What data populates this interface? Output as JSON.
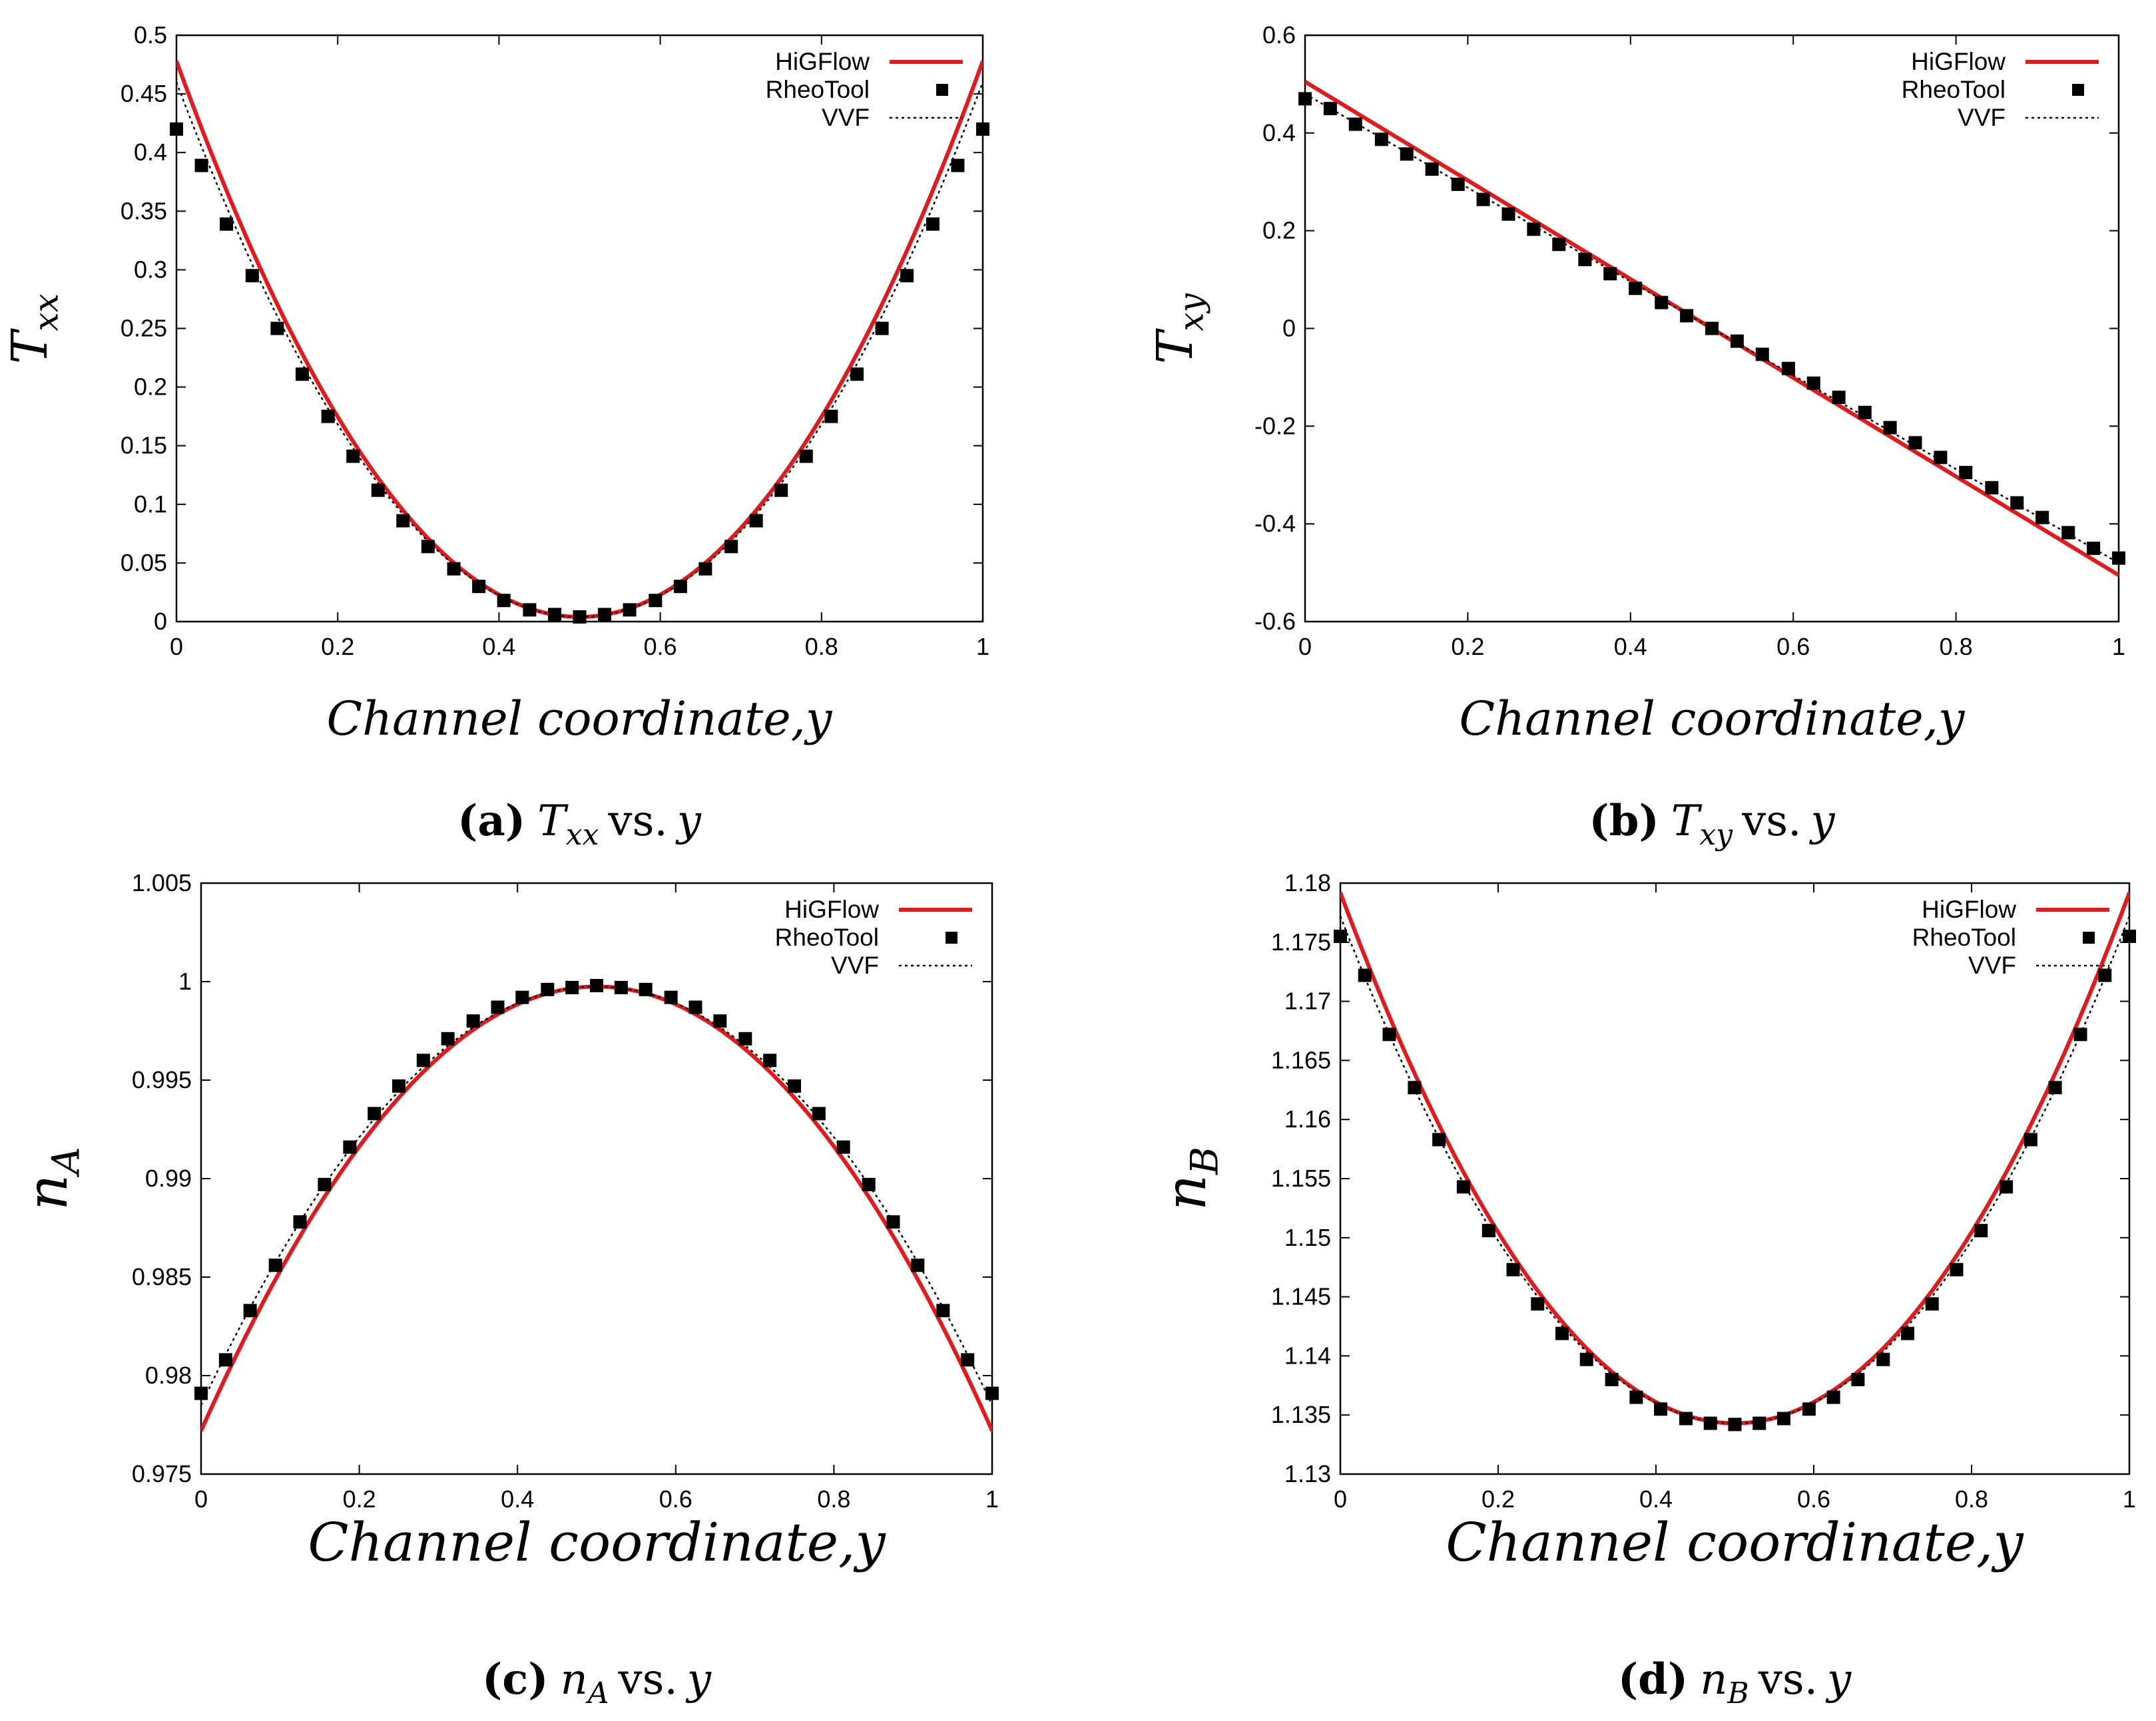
{
  "chart_data": [
    {
      "type": "line",
      "panel": "a",
      "x_range": [
        0,
        1
      ],
      "ylim": [
        0,
        0.5
      ],
      "xticks": [
        "0",
        "0.2",
        "0.4",
        "0.6",
        "0.8",
        "1"
      ],
      "xtick_values": [
        0,
        0.2,
        0.4,
        0.6,
        0.8,
        1
      ],
      "yticks": [
        "0",
        "0.05",
        "0.1",
        "0.15",
        "0.2",
        "0.25",
        "0.3",
        "0.35",
        "0.4",
        "0.45",
        "0.5"
      ],
      "ytick_values": [
        0,
        0.05,
        0.1,
        0.15,
        0.2,
        0.25,
        0.3,
        0.35,
        0.4,
        0.45,
        0.5
      ],
      "ylabel": {
        "main": "T",
        "sub": "xx"
      },
      "xlabel": "Channel coordinate,y",
      "caption": {
        "letter": "(a)",
        "sym": "T",
        "sub": "xx",
        "vs": "vs.",
        "var": "y"
      },
      "series": [
        {
          "name": "HiGFlow",
          "style": "line",
          "color": "#e4191c",
          "curve": {
            "kind": "quad",
            "x0": 0.5,
            "edge": 0.478,
            "center": 0.004
          }
        },
        {
          "name": "RheoTool",
          "style": "markers",
          "color": "#000000",
          "x": [
            0,
            0.031,
            0.062,
            0.094,
            0.125,
            0.156,
            0.188,
            0.219,
            0.25,
            0.281,
            0.312,
            0.344,
            0.375,
            0.406,
            0.438,
            0.469,
            0.5,
            0.531,
            0.562,
            0.594,
            0.625,
            0.656,
            0.688,
            0.719,
            0.75,
            0.781,
            0.812,
            0.844,
            0.875,
            0.906,
            0.938,
            0.969,
            1
          ],
          "y": [
            0.42,
            0.389,
            0.339,
            0.295,
            0.25,
            0.211,
            0.175,
            0.141,
            0.112,
            0.086,
            0.064,
            0.045,
            0.03,
            0.018,
            0.01,
            0.006,
            0.004,
            0.006,
            0.01,
            0.018,
            0.03,
            0.045,
            0.064,
            0.086,
            0.112,
            0.141,
            0.175,
            0.211,
            0.25,
            0.295,
            0.339,
            0.389,
            0.42
          ]
        },
        {
          "name": "VVF",
          "style": "dotted",
          "color": "#000000",
          "curve": {
            "kind": "quad",
            "x0": 0.5,
            "edge": 0.46,
            "center": 0.004
          }
        }
      ]
    },
    {
      "type": "line",
      "panel": "b",
      "x_range": [
        0,
        1
      ],
      "ylim": [
        -0.6,
        0.6
      ],
      "xticks": [
        "0",
        "0.2",
        "0.4",
        "0.6",
        "0.8",
        "1"
      ],
      "xtick_values": [
        0,
        0.2,
        0.4,
        0.6,
        0.8,
        1
      ],
      "yticks": [
        "-0.6",
        "-0.4",
        "-0.2",
        "0",
        "0.2",
        "0.4",
        "0.6"
      ],
      "ytick_values": [
        -0.6,
        -0.4,
        -0.2,
        0,
        0.2,
        0.4,
        0.6
      ],
      "ylabel": {
        "main": "T",
        "sub": "xy"
      },
      "xlabel": "Channel coordinate,y",
      "caption": {
        "letter": "(b)",
        "sym": "T",
        "sub": "xy",
        "vs": "vs.",
        "var": "y"
      },
      "series": [
        {
          "name": "HiGFlow",
          "style": "line",
          "color": "#e4191c",
          "curve": {
            "kind": "linear",
            "y0": 0.505,
            "y1": -0.505
          }
        },
        {
          "name": "RheoTool",
          "style": "markers",
          "color": "#000000",
          "x": [
            0,
            0.031,
            0.062,
            0.094,
            0.125,
            0.156,
            0.188,
            0.219,
            0.25,
            0.281,
            0.312,
            0.344,
            0.375,
            0.406,
            0.438,
            0.469,
            0.5,
            0.531,
            0.562,
            0.594,
            0.625,
            0.656,
            0.688,
            0.719,
            0.75,
            0.781,
            0.812,
            0.844,
            0.875,
            0.906,
            0.938,
            0.969,
            1
          ],
          "y": [
            0.47,
            0.45,
            0.418,
            0.387,
            0.357,
            0.326,
            0.295,
            0.264,
            0.234,
            0.203,
            0.172,
            0.141,
            0.112,
            0.082,
            0.053,
            0.026,
            0,
            -0.026,
            -0.053,
            -0.082,
            -0.112,
            -0.141,
            -0.172,
            -0.203,
            -0.234,
            -0.264,
            -0.295,
            -0.326,
            -0.357,
            -0.387,
            -0.418,
            -0.45,
            -0.47
          ]
        },
        {
          "name": "VVF",
          "style": "dotted",
          "color": "#000000",
          "curve": {
            "kind": "linear",
            "y0": 0.48,
            "y1": -0.48
          }
        }
      ]
    },
    {
      "type": "line",
      "panel": "c",
      "x_range": [
        0,
        1
      ],
      "ylim": [
        0.975,
        1.005
      ],
      "xticks": [
        "0",
        "0.2",
        "0.4",
        "0.6",
        "0.8",
        "1"
      ],
      "xtick_values": [
        0,
        0.2,
        0.4,
        0.6,
        0.8,
        1
      ],
      "yticks": [
        "0.975",
        "0.98",
        "0.985",
        "0.99",
        "0.995",
        "1",
        "1.005"
      ],
      "ytick_values": [
        0.975,
        0.98,
        0.985,
        0.99,
        0.995,
        1,
        1.005
      ],
      "ylabel": {
        "main": "n",
        "sub": "A"
      },
      "xlabel": "Channel coordinate,y",
      "caption": {
        "letter": "(c)",
        "sym": "n",
        "sub": "A",
        "vs": "vs.",
        "var": "y"
      },
      "series": [
        {
          "name": "HiGFlow",
          "style": "line",
          "color": "#e4191c",
          "curve": {
            "kind": "quad",
            "x0": 0.5,
            "edge": 0.9772,
            "center": 0.99975
          }
        },
        {
          "name": "RheoTool",
          "style": "markers",
          "color": "#000000",
          "x": [
            0,
            0.031,
            0.062,
            0.094,
            0.125,
            0.156,
            0.188,
            0.219,
            0.25,
            0.281,
            0.312,
            0.344,
            0.375,
            0.406,
            0.438,
            0.469,
            0.5,
            0.531,
            0.562,
            0.594,
            0.625,
            0.656,
            0.688,
            0.719,
            0.75,
            0.781,
            0.812,
            0.844,
            0.875,
            0.906,
            0.938,
            0.969,
            1
          ],
          "y": [
            0.9791,
            0.9808,
            0.9833,
            0.9856,
            0.9878,
            0.9897,
            0.9916,
            0.9933,
            0.9947,
            0.996,
            0.9971,
            0.998,
            0.9987,
            0.9992,
            0.9996,
            0.9997,
            0.9998,
            0.9997,
            0.9996,
            0.9992,
            0.9987,
            0.998,
            0.9971,
            0.996,
            0.9947,
            0.9933,
            0.9916,
            0.9897,
            0.9878,
            0.9856,
            0.9833,
            0.9808,
            0.9791
          ]
        },
        {
          "name": "VVF",
          "style": "dotted",
          "color": "#000000",
          "curve": {
            "kind": "quad",
            "x0": 0.5,
            "edge": 0.9785,
            "center": 0.99975
          }
        }
      ]
    },
    {
      "type": "line",
      "panel": "d",
      "x_range": [
        0,
        1
      ],
      "ylim": [
        1.13,
        1.18
      ],
      "xticks": [
        "0",
        "0.2",
        "0.4",
        "0.6",
        "0.8",
        "1"
      ],
      "xtick_values": [
        0,
        0.2,
        0.4,
        0.6,
        0.8,
        1
      ],
      "yticks": [
        "1.13",
        "1.135",
        "1.14",
        "1.145",
        "1.15",
        "1.155",
        "1.16",
        "1.165",
        "1.17",
        "1.175",
        "1.18"
      ],
      "ytick_values": [
        1.13,
        1.135,
        1.14,
        1.145,
        1.15,
        1.155,
        1.16,
        1.165,
        1.17,
        1.175,
        1.18
      ],
      "ylabel": {
        "main": "n",
        "sub": "B"
      },
      "xlabel": "Channel coordinate,y",
      "caption": {
        "letter": "(d)",
        "sym": "n",
        "sub": "B",
        "vs": "vs.",
        "var": "y"
      },
      "series": [
        {
          "name": "HiGFlow",
          "style": "line",
          "color": "#e4191c",
          "curve": {
            "kind": "quad",
            "x0": 0.5,
            "edge": 1.1792,
            "center": 1.1343
          }
        },
        {
          "name": "RheoTool",
          "style": "markers",
          "color": "#000000",
          "x": [
            0,
            0.031,
            0.062,
            0.094,
            0.125,
            0.156,
            0.188,
            0.219,
            0.25,
            0.281,
            0.312,
            0.344,
            0.375,
            0.406,
            0.438,
            0.469,
            0.5,
            0.531,
            0.562,
            0.594,
            0.625,
            0.656,
            0.688,
            0.719,
            0.75,
            0.781,
            0.812,
            0.844,
            0.875,
            0.906,
            0.938,
            0.969,
            1
          ],
          "y": [
            1.1755,
            1.1722,
            1.1672,
            1.1627,
            1.1583,
            1.1543,
            1.1506,
            1.1473,
            1.1444,
            1.1419,
            1.1397,
            1.138,
            1.1365,
            1.1355,
            1.1347,
            1.1343,
            1.1342,
            1.1343,
            1.1347,
            1.1355,
            1.1365,
            1.138,
            1.1397,
            1.1419,
            1.1444,
            1.1473,
            1.1506,
            1.1543,
            1.1583,
            1.1627,
            1.1672,
            1.1722,
            1.1755
          ]
        },
        {
          "name": "VVF",
          "style": "dotted",
          "color": "#000000",
          "curve": {
            "kind": "quad",
            "x0": 0.5,
            "edge": 1.1772,
            "center": 1.1343
          }
        }
      ]
    }
  ]
}
